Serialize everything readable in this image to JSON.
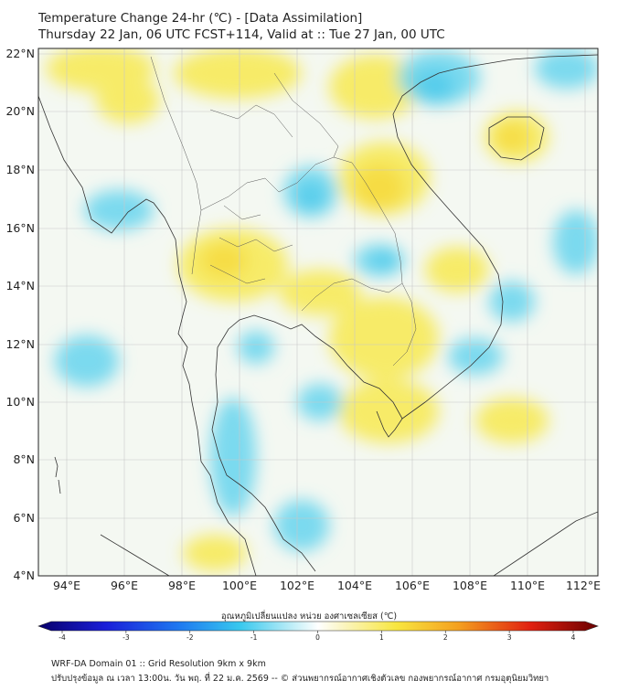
{
  "title": {
    "line1": "Temperature Change 24-hr (℃) - [Data Assimilation]",
    "line2": "Thursday 22 Jan, 06 UTC FCST+114, Valid at :: Tue 27 Jan, 00 UTC"
  },
  "map": {
    "lat_labels": [
      "22°N",
      "20°N",
      "18°N",
      "16°N",
      "14°N",
      "12°N",
      "10°N",
      "8°N",
      "6°N",
      "4°N"
    ],
    "lon_labels": [
      "94°E",
      "96°E",
      "98°E",
      "100°E",
      "102°E",
      "104°E",
      "106°E",
      "108°E",
      "110°E",
      "112°E"
    ],
    "field_description_colors": {
      "warm": "#f7e64a",
      "cool": "#5fd3ee",
      "neutral": "#f4f8f2"
    }
  },
  "colorbar": {
    "label": "อุณหภูมิเปลี่ยนแปลง หน่วย องศาเซลเซียส (℃)",
    "ticks": [
      "-4",
      "-3",
      "-2",
      "-1",
      "0",
      "1",
      "2",
      "3",
      "4"
    ],
    "min": -4,
    "max": 4
  },
  "footer": {
    "line1": "WRF-DA Domain 01 :: Grid Resolution 9km x 9km",
    "line2": "ปรับปรุงข้อมูล ณ เวลา 13:00น. วัน พฤ. ที่ 22 ม.ค. 2569 -- © ส่วนพยากรณ์อากาศเชิงตัวเลข กองพยากรณ์อากาศ กรมอุตุนิยมวิทยา"
  }
}
